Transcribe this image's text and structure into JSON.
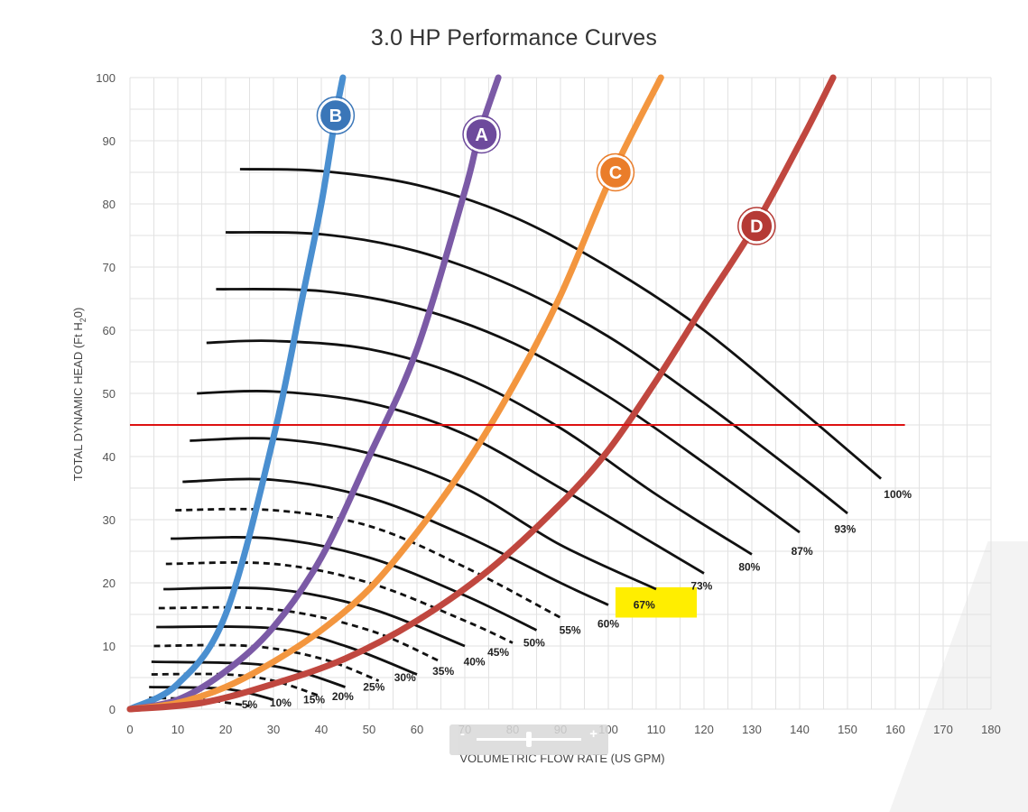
{
  "chart_data": {
    "type": "line",
    "title": "3.0 HP  Performance Curves",
    "xlabel": "VOLUMETRIC FLOW RATE (US GPM)",
    "ylabel": "TOTAL DYNAMIC HEAD (Ft H",
    "ylabel_sub": "2",
    "ylabel_end": "0)",
    "xlim": [
      0,
      180
    ],
    "ylim": [
      0,
      100
    ],
    "x_ticks": [
      0,
      10,
      20,
      30,
      40,
      50,
      60,
      70,
      80,
      90,
      100,
      110,
      120,
      130,
      140,
      150,
      160,
      170,
      180
    ],
    "y_ticks": [
      0,
      10,
      20,
      30,
      40,
      50,
      60,
      70,
      80,
      90,
      100
    ],
    "grid": true,
    "reference_line": {
      "y": 45,
      "x_range": [
        0,
        162
      ],
      "color": "#dd1111"
    },
    "highlight": {
      "label": "67%",
      "x_range": [
        101.5,
        118.5
      ],
      "y_range": [
        14.5,
        19.3
      ],
      "color": "#ffee00"
    },
    "system_curves": [
      {
        "name": "B",
        "color": "#4a8fd0",
        "badge_color": "#3a76b8",
        "points": [
          [
            0,
            0
          ],
          [
            10,
            4
          ],
          [
            20,
            15
          ],
          [
            30,
            43
          ],
          [
            36,
            65
          ],
          [
            40,
            80
          ],
          [
            43,
            94
          ],
          [
            44.5,
            100
          ]
        ]
      },
      {
        "name": "A",
        "color": "#7b5aa6",
        "badge_color": "#6d4a9c",
        "points": [
          [
            0,
            0
          ],
          [
            10,
            1.5
          ],
          [
            20,
            6
          ],
          [
            30,
            13
          ],
          [
            40,
            24
          ],
          [
            50,
            40
          ],
          [
            60,
            57
          ],
          [
            70,
            82
          ],
          [
            73,
            91
          ],
          [
            77,
            100
          ]
        ]
      },
      {
        "name": "C",
        "color": "#f3963f",
        "badge_color": "#ea7d2a",
        "points": [
          [
            0,
            0
          ],
          [
            10,
            1
          ],
          [
            20,
            3.5
          ],
          [
            30,
            7.5
          ],
          [
            40,
            12.5
          ],
          [
            50,
            19
          ],
          [
            60,
            28
          ],
          [
            70,
            38.5
          ],
          [
            80,
            51
          ],
          [
            90,
            65.5
          ],
          [
            101,
            85
          ],
          [
            111,
            100
          ]
        ]
      },
      {
        "name": "D",
        "color": "#c0473f",
        "badge_color": "#b53a35",
        "points": [
          [
            0,
            0
          ],
          [
            15,
            1
          ],
          [
            30,
            4
          ],
          [
            45,
            8
          ],
          [
            60,
            14
          ],
          [
            75,
            22
          ],
          [
            90,
            32.5
          ],
          [
            100,
            41
          ],
          [
            110,
            52
          ],
          [
            120,
            64
          ],
          [
            131,
            77
          ],
          [
            141,
            91
          ],
          [
            147,
            100
          ]
        ]
      }
    ],
    "speed_curves": [
      {
        "name": "100%",
        "dashed": false,
        "points": [
          [
            23,
            85.5
          ],
          [
            40,
            85.2
          ],
          [
            60,
            83
          ],
          [
            80,
            78
          ],
          [
            100,
            70
          ],
          [
            120,
            60
          ],
          [
            140,
            47.5
          ],
          [
            157,
            36.5
          ]
        ],
        "label": "100%",
        "label_at": [
          160.5,
          34
        ]
      },
      {
        "name": "93%",
        "dashed": false,
        "points": [
          [
            20,
            75.5
          ],
          [
            40,
            75.2
          ],
          [
            60,
            72.5
          ],
          [
            80,
            67
          ],
          [
            100,
            59
          ],
          [
            120,
            48.5
          ],
          [
            140,
            37
          ],
          [
            150,
            31
          ]
        ],
        "label": "93%",
        "label_at": [
          149.5,
          28.5
        ]
      },
      {
        "name": "87%",
        "dashed": false,
        "points": [
          [
            18,
            66.5
          ],
          [
            40,
            66.2
          ],
          [
            60,
            63.5
          ],
          [
            80,
            58
          ],
          [
            100,
            49.5
          ],
          [
            120,
            39
          ],
          [
            140,
            28
          ]
        ],
        "label": "87%",
        "label_at": [
          140.5,
          25
        ]
      },
      {
        "name": "80%",
        "dashed": false,
        "points": [
          [
            16,
            58
          ],
          [
            30,
            58.3
          ],
          [
            50,
            57
          ],
          [
            70,
            52.5
          ],
          [
            90,
            44.5
          ],
          [
            110,
            34
          ],
          [
            130,
            24.5
          ]
        ],
        "label": "80%",
        "label_at": [
          129.5,
          22.5
        ]
      },
      {
        "name": "73%",
        "dashed": false,
        "points": [
          [
            14,
            50
          ],
          [
            30,
            50.3
          ],
          [
            50,
            48.5
          ],
          [
            70,
            43.5
          ],
          [
            90,
            35
          ],
          [
            110,
            26
          ],
          [
            120,
            21.5
          ]
        ],
        "label": "73%",
        "label_at": [
          119.5,
          19.5
        ]
      },
      {
        "name": "67%",
        "dashed": false,
        "points": [
          [
            12.5,
            42.5
          ],
          [
            30,
            42.8
          ],
          [
            50,
            40.5
          ],
          [
            70,
            35
          ],
          [
            90,
            26
          ],
          [
            110,
            19
          ]
        ],
        "label": "67%",
        "label_at": [
          107.5,
          16.5
        ]
      },
      {
        "name": "60%",
        "dashed": false,
        "points": [
          [
            11,
            36
          ],
          [
            30,
            36.3
          ],
          [
            50,
            33.5
          ],
          [
            70,
            27.5
          ],
          [
            90,
            20
          ],
          [
            100,
            16.5
          ]
        ],
        "label": "60%",
        "label_at": [
          100,
          13.5
        ]
      },
      {
        "name": "55%",
        "dashed": true,
        "points": [
          [
            9.5,
            31.5
          ],
          [
            30,
            31.5
          ],
          [
            50,
            29
          ],
          [
            70,
            22.5
          ],
          [
            90,
            14.5
          ]
        ],
        "label": "55%",
        "label_at": [
          92,
          12.5
        ]
      },
      {
        "name": "50%",
        "dashed": false,
        "points": [
          [
            8.5,
            27
          ],
          [
            30,
            27
          ],
          [
            50,
            24
          ],
          [
            70,
            18
          ],
          [
            85,
            12.5
          ]
        ],
        "label": "50%",
        "label_at": [
          84.5,
          10.5
        ]
      },
      {
        "name": "45%",
        "dashed": true,
        "points": [
          [
            7.5,
            23
          ],
          [
            30,
            23
          ],
          [
            50,
            20
          ],
          [
            70,
            14
          ],
          [
            80,
            10.5
          ]
        ],
        "label": "45%",
        "label_at": [
          77,
          9
        ]
      },
      {
        "name": "40%",
        "dashed": false,
        "points": [
          [
            7,
            19
          ],
          [
            30,
            19
          ],
          [
            50,
            16
          ],
          [
            70,
            10
          ]
        ],
        "label": "40%",
        "label_at": [
          72,
          7.5
        ]
      },
      {
        "name": "35%",
        "dashed": true,
        "points": [
          [
            6,
            16
          ],
          [
            30,
            15.8
          ],
          [
            50,
            12.5
          ],
          [
            65,
            7.5
          ]
        ],
        "label": "35%",
        "label_at": [
          65.5,
          6
        ]
      },
      {
        "name": "30%",
        "dashed": false,
        "points": [
          [
            5.5,
            13
          ],
          [
            30,
            12.8
          ],
          [
            45,
            10
          ],
          [
            60,
            5.5
          ]
        ],
        "label": "30%",
        "label_at": [
          57.5,
          5
        ]
      },
      {
        "name": "25%",
        "dashed": true,
        "points": [
          [
            5,
            10
          ],
          [
            25,
            10
          ],
          [
            40,
            8
          ],
          [
            52,
            4.5
          ]
        ],
        "label": "25%",
        "label_at": [
          51,
          3.5
        ]
      },
      {
        "name": "20%",
        "dashed": false,
        "points": [
          [
            4.5,
            7.5
          ],
          [
            25,
            7.2
          ],
          [
            35,
            6
          ],
          [
            45,
            3.5
          ]
        ],
        "label": "20%",
        "label_at": [
          44.5,
          2
        ]
      },
      {
        "name": "15%",
        "dashed": true,
        "points": [
          [
            4.5,
            5.5
          ],
          [
            20,
            5.5
          ],
          [
            30,
            4.5
          ],
          [
            40,
            2
          ]
        ],
        "label": "15%",
        "label_at": [
          38.5,
          1.5
        ]
      },
      {
        "name": "10%",
        "dashed": false,
        "points": [
          [
            4,
            3.5
          ],
          [
            20,
            3.2
          ],
          [
            30,
            1.5
          ]
        ],
        "label": "10%",
        "label_at": [
          31.5,
          1
        ]
      },
      {
        "name": "5%",
        "dashed": true,
        "points": [
          [
            4,
            1.8
          ],
          [
            15,
            1.5
          ],
          [
            25,
            0.5
          ]
        ],
        "label": "5%",
        "label_at": [
          25,
          0.7
        ]
      }
    ],
    "badges": [
      {
        "label": "B",
        "x": 43,
        "y": 94
      },
      {
        "label": "A",
        "x": 73.5,
        "y": 91
      },
      {
        "label": "C",
        "x": 101.5,
        "y": 85
      },
      {
        "label": "D",
        "x": 131,
        "y": 76.5
      }
    ]
  },
  "zoom_control": {
    "minus": "-",
    "plus": "+",
    "level": 0.5
  }
}
